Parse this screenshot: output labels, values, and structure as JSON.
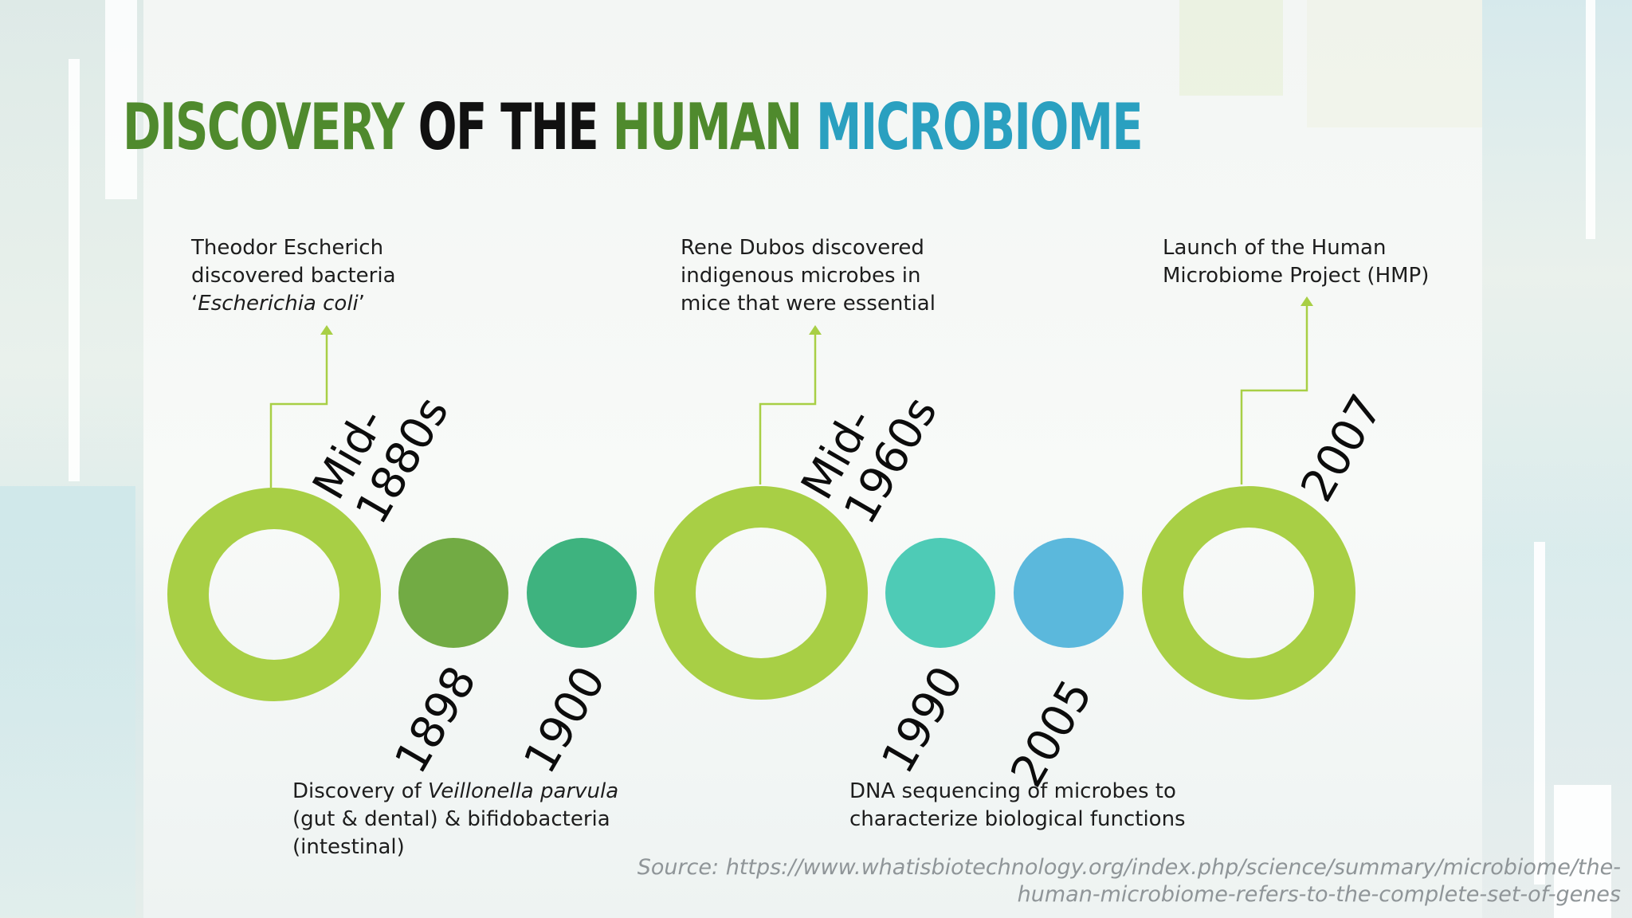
{
  "title": {
    "word1": "DISCOVERY",
    "word2": " OF THE ",
    "word3": "HUMAN ",
    "word4": "MICROBIOME"
  },
  "milestones": [
    {
      "year_line1": "Mid-",
      "year_line2": "1880s",
      "desc_line1": "Theodor Escherich",
      "desc_line2": "discovered bacteria",
      "desc_line3_pre": "‘",
      "desc_line3_italic": "Escherichia coli",
      "desc_line3_post": "’"
    },
    {
      "year": "1898"
    },
    {
      "year": "1900"
    },
    {
      "year_line1": "Mid-",
      "year_line2": "1960s",
      "desc_line1": "Rene Dubos discovered",
      "desc_line2": "indigenous microbes in",
      "desc_line3": "mice that were essential"
    },
    {
      "year": "1990"
    },
    {
      "year": "2005"
    },
    {
      "year": "2007",
      "desc_line1": "Launch of the Human",
      "desc_line2": "Microbiome Project (HMP)"
    }
  ],
  "bottom_notes": [
    {
      "line1_pre": "Discovery of ",
      "line1_italic": "Veillonella parvula",
      "line2": "(gut & dental) & bifidobacteria",
      "line3": "(intestinal)"
    },
    {
      "line1": "DNA sequencing of microbes to",
      "line2": "characterize biological functions"
    }
  ],
  "source": {
    "line1": "Source: https://www.whatisbiotechnology.org/index.php/science/summary/microbiome/the-",
    "line2": "human-microbiome-refers-to-the-complete-set-of-genes"
  },
  "colors": {
    "ring": "#a8cf45",
    "dot_1898": "#72ab44",
    "dot_1900": "#3eb37f",
    "dot_1990": "#4ecbb6",
    "dot_2005": "#5bb8dc",
    "connector": "#a8cf45",
    "title_green": "#4f8a2d",
    "title_blue": "#2aa0c0"
  }
}
